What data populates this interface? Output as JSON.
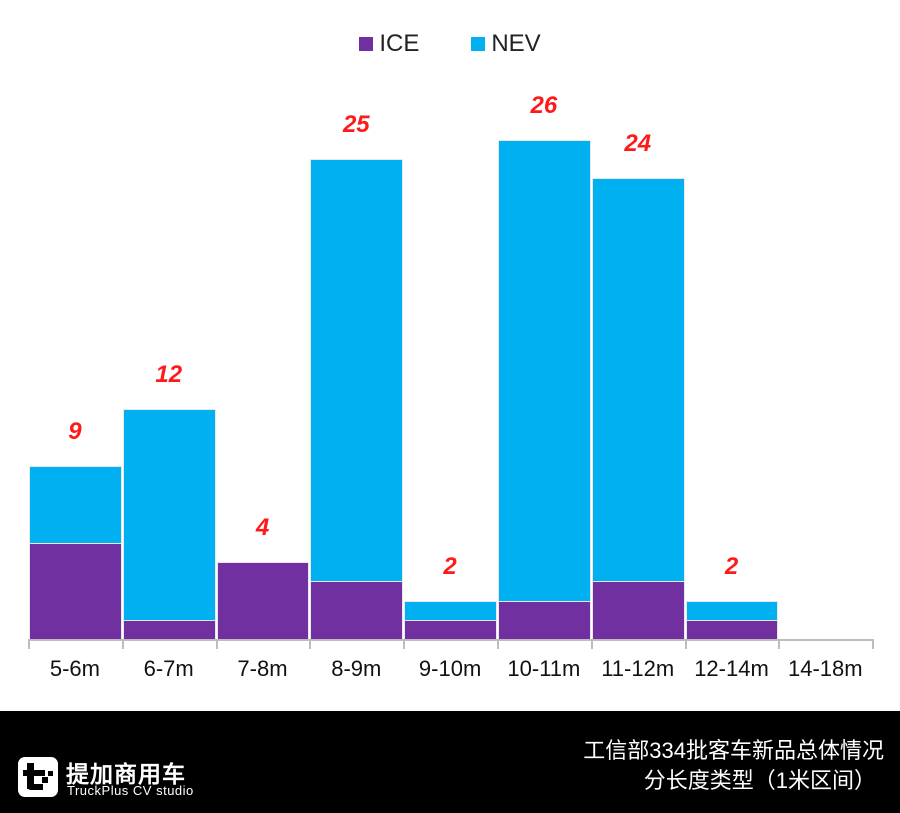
{
  "chart_data": {
    "type": "bar",
    "stacked": true,
    "title": "工信部334批客车新品总体情况 分长度类型（1米区间）",
    "xlabel": "",
    "ylabel": "",
    "categories": [
      "5-6m",
      "6-7m",
      "7-8m",
      "8-9m",
      "9-10m",
      "10-11m",
      "11-12m",
      "12-14m",
      "14-18m"
    ],
    "series": [
      {
        "name": "ICE",
        "color": "#7030a0",
        "values": [
          5,
          1,
          4,
          3,
          1,
          2,
          3,
          1,
          0
        ]
      },
      {
        "name": "NEV",
        "color": "#00b0f0",
        "values": [
          4,
          11,
          0,
          22,
          1,
          24,
          21,
          1,
          0
        ]
      }
    ],
    "totals": [
      9,
      12,
      4,
      25,
      2,
      26,
      24,
      2,
      0
    ],
    "total_labels": [
      "9",
      "12",
      "4",
      "25",
      "2",
      "26",
      "24",
      "2",
      ""
    ],
    "legend_position": "top",
    "grid": false,
    "gap_width": 0,
    "label_color": "#ff1a1a"
  },
  "legend": {
    "ice_label": "ICE",
    "nev_label": "NEV"
  },
  "footer": {
    "brand_cn": "提加商用车",
    "brand_en": "TruckPlus CV studio",
    "title_line1": "工信部334批客车新品总体情况",
    "title_line2": "分长度类型（1米区间）"
  }
}
